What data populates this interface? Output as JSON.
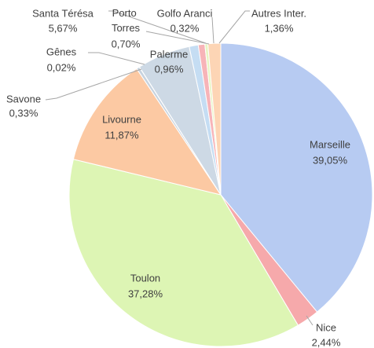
{
  "chart_data": {
    "type": "pie",
    "categories": [
      "Marseille",
      "Nice",
      "Toulon",
      "Livourne",
      "Savone",
      "Gênes",
      "Santa Térésa",
      "Palerme",
      "Porto Torres",
      "Golfo Aranci",
      "Autres Inter."
    ],
    "values": [
      39.05,
      2.44,
      37.28,
      11.87,
      0.33,
      0.02,
      5.67,
      0.96,
      0.7,
      0.32,
      1.36
    ],
    "value_labels": [
      "39,05%",
      "2,44%",
      "37,28%",
      "11,87%",
      "0,33%",
      "0,02%",
      "5,67%",
      "0,96%",
      "0,70%",
      "0,32%",
      "1,36%"
    ],
    "colors": [
      "#b7cbf2",
      "#f6a9ab",
      "#ddf5b4",
      "#fcc9a3",
      "#c7d3df",
      "#d9d9d9",
      "#cdd9e5",
      "#c5ddf3",
      "#f7b4b8",
      "#e8f5c2",
      "#fdd5b5"
    ]
  }
}
